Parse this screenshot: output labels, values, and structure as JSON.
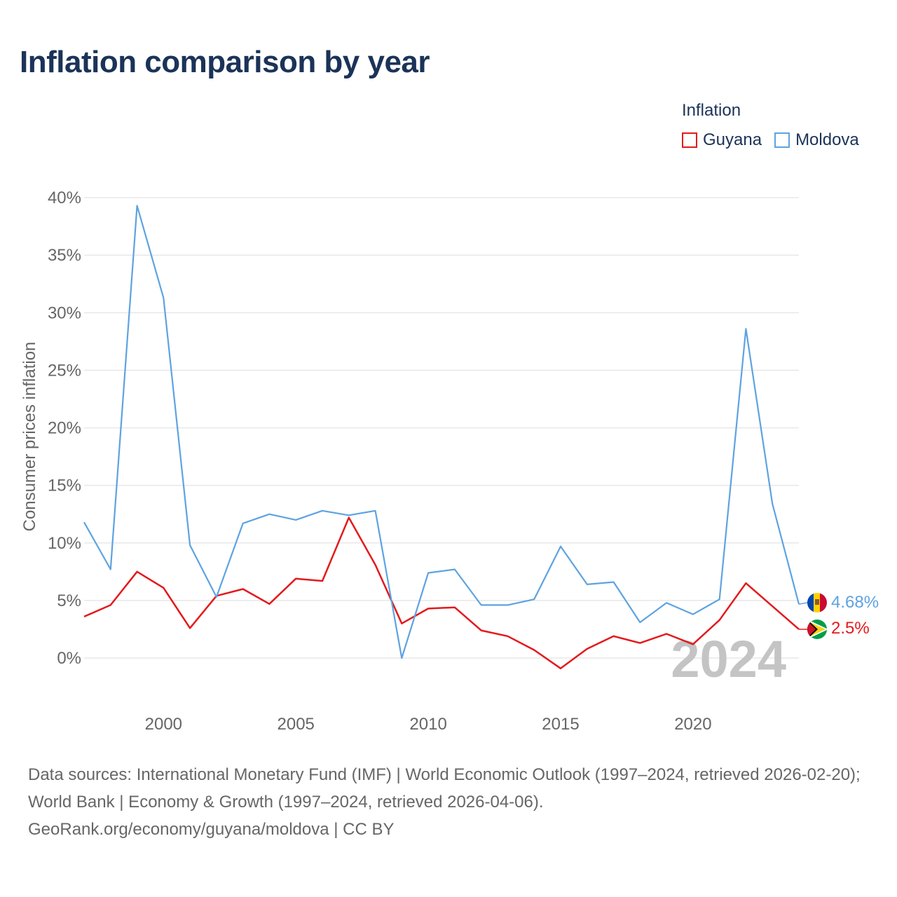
{
  "title": "Inflation comparison by year",
  "legend": {
    "title": "Inflation",
    "items": [
      {
        "label": "Guyana",
        "color": "#e31a1c"
      },
      {
        "label": "Moldova",
        "color": "#5ea3e0"
      }
    ]
  },
  "watermark_year": "2024",
  "footer": {
    "sources": "Data sources: International Monetary Fund (IMF) | World Economic Outlook (1997–2024, retrieved 2026-02-20); World Bank | Economy & Growth (1997–2024, retrieved 2026-04-06).",
    "attribution": "GeoRank.org/economy/guyana/moldova | CC BY"
  },
  "chart_data": {
    "type": "line",
    "title": "Inflation comparison by year",
    "xlabel": "",
    "ylabel": "Consumer prices inflation",
    "xlim": [
      1997,
      2024
    ],
    "ylim": [
      -4,
      40
    ],
    "y_ticks": [
      0,
      5,
      10,
      15,
      20,
      25,
      30,
      35,
      40
    ],
    "y_tick_labels": [
      "0%",
      "5%",
      "10%",
      "15%",
      "20%",
      "25%",
      "30%",
      "35%",
      "40%"
    ],
    "x_ticks": [
      2000,
      2005,
      2010,
      2015,
      2020
    ],
    "x_tick_labels": [
      "2000",
      "2005",
      "2010",
      "2015",
      "2020"
    ],
    "x": [
      1997,
      1998,
      1999,
      2000,
      2001,
      2002,
      2003,
      2004,
      2005,
      2006,
      2007,
      2008,
      2009,
      2010,
      2011,
      2012,
      2013,
      2014,
      2015,
      2016,
      2017,
      2018,
      2019,
      2020,
      2021,
      2022,
      2023,
      2024
    ],
    "series": [
      {
        "name": "Guyana",
        "color": "#e31a1c",
        "end_label": "2.5%",
        "values": [
          3.6,
          4.6,
          7.5,
          6.1,
          2.6,
          5.4,
          6.0,
          4.7,
          6.9,
          6.7,
          12.2,
          8.1,
          3.0,
          4.3,
          4.4,
          2.4,
          1.9,
          0.7,
          -0.9,
          0.8,
          1.9,
          1.3,
          2.1,
          1.2,
          3.3,
          6.5,
          4.5,
          2.5
        ]
      },
      {
        "name": "Moldova",
        "color": "#5ea3e0",
        "end_label": "4.68%",
        "values": [
          11.8,
          7.7,
          39.3,
          31.3,
          9.8,
          5.3,
          11.7,
          12.5,
          12.0,
          12.8,
          12.4,
          12.8,
          0.0,
          7.4,
          7.7,
          4.6,
          4.6,
          5.1,
          9.7,
          6.4,
          6.6,
          3.1,
          4.8,
          3.8,
          5.1,
          28.6,
          13.4,
          4.68
        ]
      }
    ]
  }
}
